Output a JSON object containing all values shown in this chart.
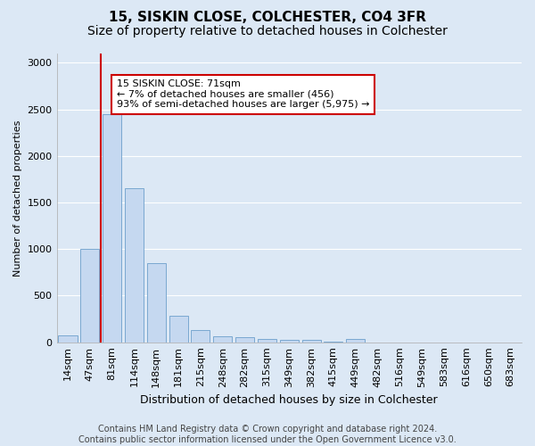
{
  "title1": "15, SISKIN CLOSE, COLCHESTER, CO4 3FR",
  "title2": "Size of property relative to detached houses in Colchester",
  "xlabel": "Distribution of detached houses by size in Colchester",
  "ylabel": "Number of detached properties",
  "footer1": "Contains HM Land Registry data © Crown copyright and database right 2024.",
  "footer2": "Contains public sector information licensed under the Open Government Licence v3.0.",
  "categories": [
    "14sqm",
    "47sqm",
    "81sqm",
    "114sqm",
    "148sqm",
    "181sqm",
    "215sqm",
    "248sqm",
    "282sqm",
    "315sqm",
    "349sqm",
    "382sqm",
    "415sqm",
    "449sqm",
    "482sqm",
    "516sqm",
    "549sqm",
    "583sqm",
    "616sqm",
    "650sqm",
    "683sqm"
  ],
  "values": [
    75,
    1000,
    2450,
    1650,
    850,
    280,
    130,
    60,
    50,
    40,
    30,
    25,
    5,
    35,
    0,
    0,
    0,
    0,
    0,
    0,
    0
  ],
  "bar_color": "#c5d8f0",
  "bar_edge_color": "#7aA8d0",
  "red_line_color": "#cc0000",
  "red_line_x": 1.5,
  "annotation_text": "15 SISKIN CLOSE: 71sqm\n← 7% of detached houses are smaller (456)\n93% of semi-detached houses are larger (5,975) →",
  "annotation_box_facecolor": "#ffffff",
  "annotation_box_edgecolor": "#cc0000",
  "ylim": [
    0,
    3100
  ],
  "yticks": [
    0,
    500,
    1000,
    1500,
    2000,
    2500,
    3000
  ],
  "background_color": "#dce8f5",
  "grid_color": "#ffffff",
  "title1_fontsize": 11,
  "title2_fontsize": 10,
  "xlabel_fontsize": 9,
  "ylabel_fontsize": 8,
  "tick_fontsize": 8,
  "annot_fontsize": 8,
  "footer_fontsize": 7
}
